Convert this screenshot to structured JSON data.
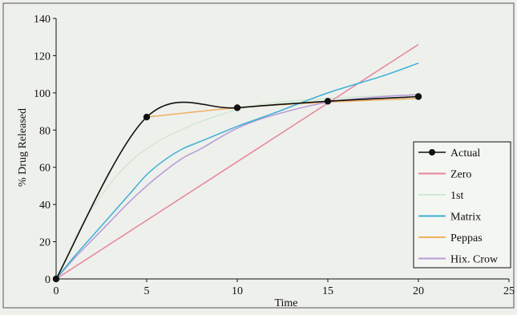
{
  "chart_data": {
    "type": "line",
    "title": "",
    "xlabel": "Time",
    "ylabel": "% Drug Released",
    "xlim": [
      0,
      25
    ],
    "ylim": [
      0,
      140
    ],
    "x_ticks": [
      "0",
      "5",
      "10",
      "15",
      "20",
      "25"
    ],
    "y_ticks": [
      "0",
      "20",
      "40",
      "60",
      "80",
      "100",
      "120",
      "140"
    ],
    "grid": false,
    "legend_position": "bottom-right",
    "series": [
      {
        "name": "Actual",
        "color": "#111111",
        "markers": true,
        "smooth": true,
        "x": [
          0,
          5,
          10,
          15,
          20
        ],
        "y": [
          0,
          87,
          92,
          95.5,
          98
        ]
      },
      {
        "name": "Zero",
        "color": "#e8849a",
        "markers": false,
        "smooth": false,
        "x": [
          0,
          20
        ],
        "y": [
          0,
          126
        ]
      },
      {
        "name": "1st",
        "color": "#cfe8cf",
        "markers": false,
        "smooth": true,
        "x": [
          0,
          2,
          5,
          10,
          15,
          20
        ],
        "y": [
          0,
          38,
          70,
          91,
          97,
          99
        ]
      },
      {
        "name": "Matrix",
        "color": "#3bb0d6",
        "markers": false,
        "smooth": true,
        "x": [
          0,
          1,
          2,
          3,
          4,
          5,
          6,
          7,
          8,
          10,
          12,
          15,
          18,
          20
        ],
        "y": [
          0,
          12,
          23,
          34,
          45,
          56,
          64,
          70,
          74,
          82,
          89,
          100,
          109,
          116
        ]
      },
      {
        "name": "Peppas",
        "color": "#f0b060",
        "markers": false,
        "smooth": true,
        "x": [
          5,
          10,
          15,
          20
        ],
        "y": [
          87,
          92,
          95,
          97
        ]
      },
      {
        "name": "Hix. Crow",
        "color": "#b89ad6",
        "markers": false,
        "smooth": true,
        "x": [
          0,
          1,
          2,
          3,
          4,
          5,
          6,
          7,
          8,
          10,
          12,
          15,
          18,
          20
        ],
        "y": [
          0,
          11,
          21,
          31,
          41,
          50,
          58,
          65,
          70,
          81,
          88,
          95,
          98,
          99
        ]
      }
    ]
  }
}
